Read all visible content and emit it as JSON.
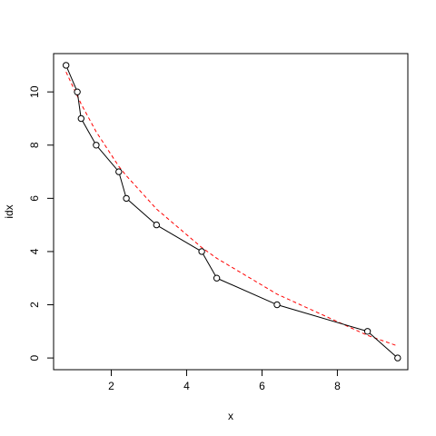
{
  "chart_data": {
    "type": "line",
    "title": "",
    "xlabel": "x",
    "ylabel": "idx",
    "xlim": [
      0.47,
      9.87
    ],
    "ylim": [
      -0.44,
      11.44
    ],
    "xticks": [
      2,
      4,
      6,
      8
    ],
    "yticks": [
      0,
      2,
      4,
      6,
      8,
      10
    ],
    "grid": false,
    "legend": "none",
    "series": [
      {
        "style": "points-and-lines",
        "color": "#000000",
        "x": [
          0.8,
          1.1,
          1.2,
          1.6,
          2.2,
          2.4,
          3.2,
          4.4,
          4.8,
          6.4,
          8.8,
          9.6
        ],
        "y": [
          11,
          10,
          9,
          8,
          7,
          6,
          5,
          4,
          3,
          2,
          1,
          0
        ]
      },
      {
        "style": "dashed-line",
        "color": "#ff0000",
        "x": [
          0.8,
          1.1,
          1.2,
          1.6,
          2.2,
          2.4,
          3.2,
          4.4,
          4.8,
          6.4,
          8.8,
          9.6
        ],
        "y": [
          10.75,
          9.85,
          9.55,
          8.5,
          7.2,
          6.85,
          5.6,
          4.15,
          3.75,
          2.4,
          0.85,
          0.45
        ]
      }
    ]
  }
}
